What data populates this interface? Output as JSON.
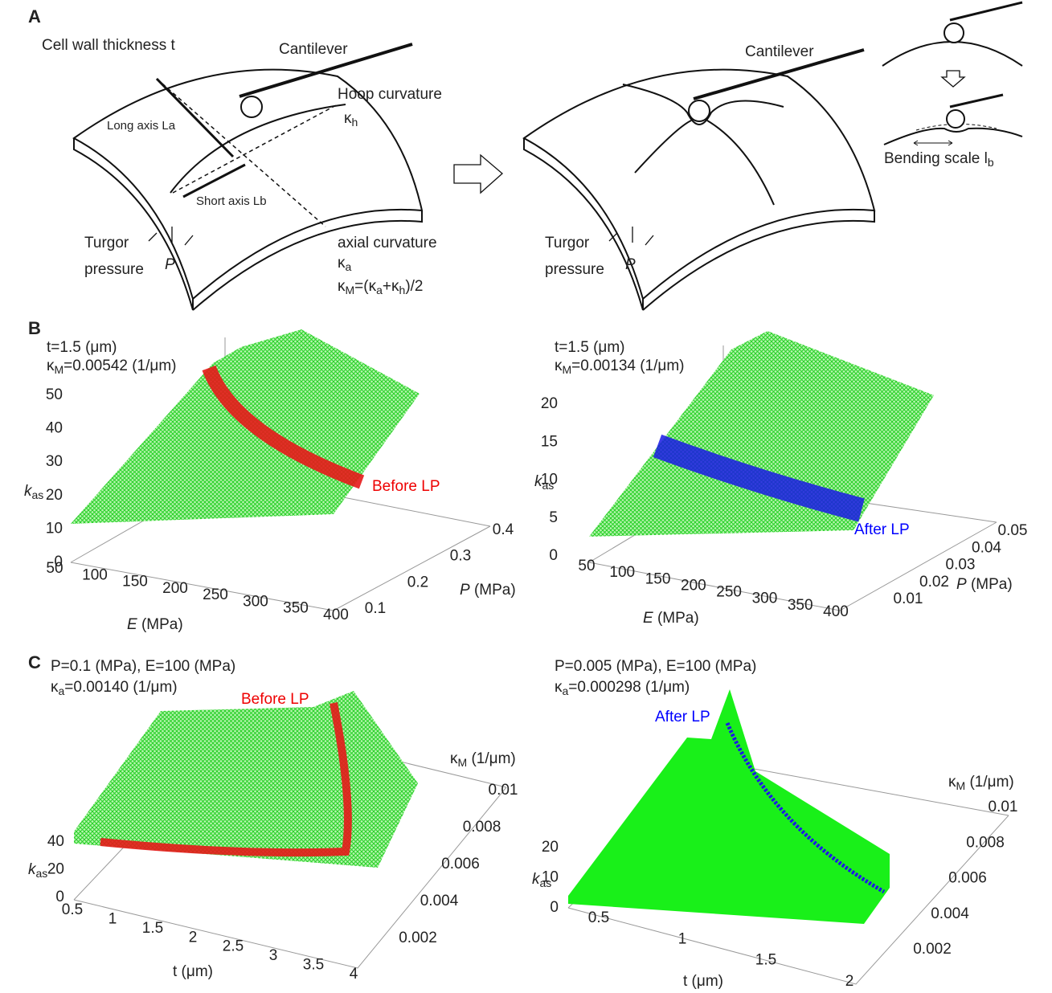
{
  "panel_a": {
    "label": "A",
    "cell_wall": "Cell wall thickness t",
    "cantilever_left": "Cantilever",
    "hoop_curvature": "Hoop curvature",
    "kappa_h": {
      "symbol": "κ",
      "sub": "h"
    },
    "long_axis": "Long axis La",
    "short_axis": "Short axis Lb",
    "turgor_left": "Turgor",
    "pressure_left": "pressure",
    "p_left": "P",
    "axial_curvature": "axial curvature",
    "kappa_a": {
      "symbol": "κ",
      "sub": "a"
    },
    "mean_formula": [
      {
        "text": "κ"
      },
      {
        "sub": "M"
      },
      {
        "text": "=(κ"
      },
      {
        "sub": "a"
      },
      {
        "text": "+κ"
      },
      {
        "sub": "h"
      },
      {
        "text": ")/2"
      }
    ],
    "cantilever_right": "Cantilever",
    "turgor_right": "Turgor",
    "pressure_right": "pressure",
    "p_right": "P",
    "bending_scale": {
      "text": "Bending scale l",
      "sub": "b"
    }
  },
  "panel_b": {
    "label": "B",
    "left": {
      "annotation_t": "t=1.5 (μm)",
      "annotation_kappa": {
        "symbol": "κ",
        "sub": "M",
        "rest": "=0.00542 (1/μm)"
      },
      "z_label": {
        "symbol": "k",
        "sub": "as"
      },
      "z_ticks": [
        0,
        10,
        20,
        30,
        40,
        50
      ],
      "x_label": {
        "symbol": "E",
        "rest": " (MPa)"
      },
      "x_ticks": [
        50,
        100,
        150,
        200,
        250,
        300,
        350,
        400
      ],
      "y_label": {
        "symbol": "P",
        "rest": " (MPa)"
      },
      "y_ticks": [
        0.1,
        0.2,
        0.3,
        0.4
      ],
      "band_label": "Before LP"
    },
    "right": {
      "annotation_t": "t=1.5 (μm)",
      "annotation_kappa": {
        "symbol": "κ",
        "sub": "M",
        "rest": "=0.00134 (1/μm)"
      },
      "z_label": {
        "symbol": "k",
        "sub": "as"
      },
      "z_ticks": [
        0,
        5,
        10,
        15,
        20
      ],
      "x_label": {
        "symbol": "E",
        "rest": " (MPa)"
      },
      "x_ticks": [
        50,
        100,
        150,
        200,
        250,
        300,
        350,
        400
      ],
      "y_label": {
        "symbol": "P",
        "rest": " (MPa)"
      },
      "y_ticks": [
        0.01,
        0.02,
        0.03,
        0.04,
        0.05
      ],
      "band_label": "After LP"
    }
  },
  "panel_c": {
    "label": "C",
    "left": {
      "annotation_params": "P=0.1 (MPa), E=100 (MPa)",
      "annotation_kappa": {
        "symbol": "κ",
        "sub": "a",
        "rest": "=0.00140 (1/μm)"
      },
      "z_label": {
        "symbol": "k",
        "sub": "as"
      },
      "z_ticks": [
        0,
        20,
        40
      ],
      "x_label": "t (μm)",
      "x_ticks": [
        0.5,
        1,
        1.5,
        2,
        2.5,
        3,
        3.5,
        4
      ],
      "y_label": {
        "symbol": "κ",
        "sub": "M",
        "rest": " (1/μm)"
      },
      "y_ticks": [
        0.002,
        0.004,
        0.006,
        0.008,
        0.01
      ],
      "band_label": "Before LP"
    },
    "right": {
      "annotation_params": "P=0.005 (MPa), E=100 (MPa)",
      "annotation_kappa": {
        "symbol": "κ",
        "sub": "a",
        "rest": "=0.000298 (1/μm)"
      },
      "z_label": {
        "symbol": "k",
        "sub": "as"
      },
      "z_ticks": [
        0,
        10,
        20
      ],
      "x_label": "t (μm)",
      "x_ticks": [
        0.5,
        1,
        1.5,
        2
      ],
      "y_label": {
        "symbol": "κ",
        "sub": "M",
        "rest": " (1/μm)"
      },
      "y_ticks": [
        0.002,
        0.004,
        0.006,
        0.008,
        0.01
      ],
      "band_label": "After LP"
    }
  }
}
